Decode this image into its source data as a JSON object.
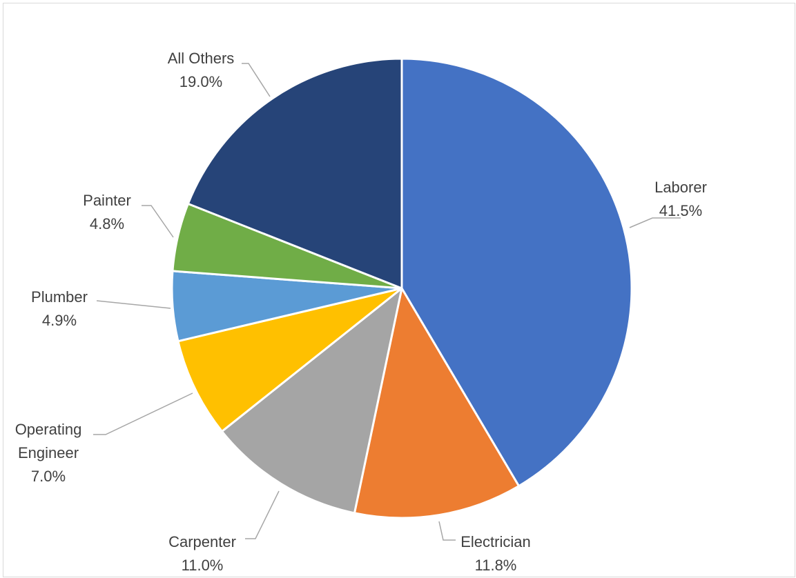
{
  "chart_data": {
    "type": "pie",
    "title": "",
    "start_angle_deg": 0,
    "direction": "clockwise",
    "legend": "none",
    "data_labels": "outside-with-leader-lines",
    "slices": [
      {
        "label_lines": [
          "Laborer"
        ],
        "value_label": "41.5%",
        "value": 41.5,
        "color": "#4472c4"
      },
      {
        "label_lines": [
          "Electrician"
        ],
        "value_label": "11.8%",
        "value": 11.8,
        "color": "#ed7d31"
      },
      {
        "label_lines": [
          "Carpenter"
        ],
        "value_label": "11.0%",
        "value": 11.0,
        "color": "#a5a5a5"
      },
      {
        "label_lines": [
          "Operating",
          "Engineer"
        ],
        "value_label": "7.0%",
        "value": 7.0,
        "color": "#ffc000"
      },
      {
        "label_lines": [
          "Plumber"
        ],
        "value_label": "4.9%",
        "value": 4.9,
        "color": "#5b9bd5"
      },
      {
        "label_lines": [
          "Painter"
        ],
        "value_label": "4.8%",
        "value": 4.8,
        "color": "#70ad47"
      },
      {
        "label_lines": [
          "All Others"
        ],
        "value_label": "19.0%",
        "value": 19.0,
        "color": "#264478"
      }
    ]
  }
}
